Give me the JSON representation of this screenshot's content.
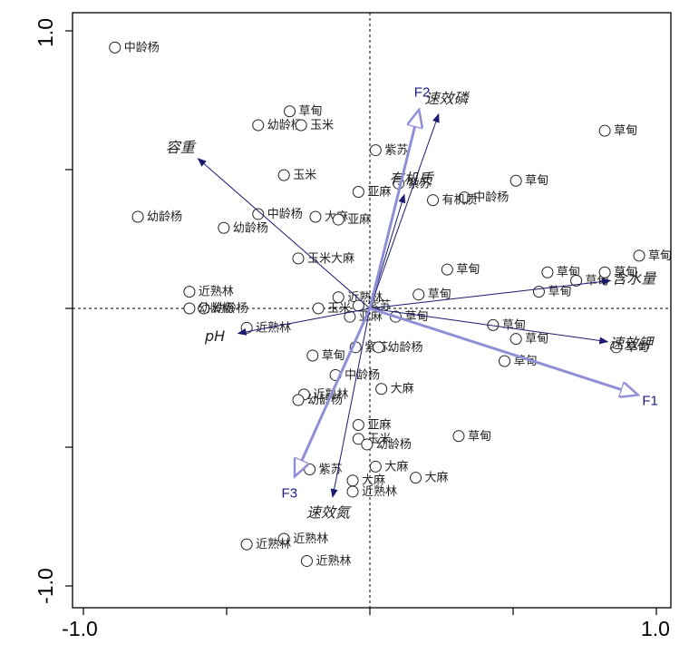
{
  "chart_data": {
    "type": "scatter",
    "title": "",
    "xlabel": "",
    "ylabel": "",
    "xlim": [
      -1.0,
      1.0
    ],
    "ylim": [
      -1.0,
      1.0
    ],
    "tick_labels": {
      "x_left": "-1.0",
      "x_right": "1.0",
      "y_top": "1.0",
      "y_bottom": "-1.0"
    },
    "colors": {
      "env_arrow": "#1a1a6e",
      "factor_arrow": "#8f8fd8",
      "factor_text": "#1a1a8a",
      "points": "#222222"
    },
    "env_vectors": [
      {
        "name": "速效磷",
        "x": 0.24,
        "y": 0.7
      },
      {
        "name": "容重",
        "x": -0.6,
        "y": 0.54
      },
      {
        "name": "有机质",
        "x": 0.12,
        "y": 0.41
      },
      {
        "name": "含水量",
        "x": 0.84,
        "y": 0.1
      },
      {
        "name": "pH",
        "x": -0.46,
        "y": -0.09
      },
      {
        "name": "速效钾",
        "x": 0.83,
        "y": -0.12
      },
      {
        "name": "速效氮",
        "x": -0.13,
        "y": -0.68
      }
    ],
    "factor_vectors": [
      {
        "name": "F1",
        "x": 0.93,
        "y": -0.31
      },
      {
        "name": "F2",
        "x": 0.17,
        "y": 0.71
      },
      {
        "name": "F3",
        "x": -0.26,
        "y": -0.6
      }
    ],
    "points": [
      {
        "label": "中龄杨",
        "x": -0.89,
        "y": 0.94
      },
      {
        "label": "草甸",
        "x": -0.28,
        "y": 0.71
      },
      {
        "label": "幼龄杨",
        "x": -0.39,
        "y": 0.66
      },
      {
        "label": "玉米",
        "x": -0.24,
        "y": 0.66
      },
      {
        "label": "草甸",
        "x": 0.82,
        "y": 0.64
      },
      {
        "label": "紫苏",
        "x": 0.02,
        "y": 0.57
      },
      {
        "label": "玉米",
        "x": -0.3,
        "y": 0.48
      },
      {
        "label": "紫苏",
        "x": 0.1,
        "y": 0.45
      },
      {
        "label": "中龄杨",
        "x": 0.33,
        "y": 0.4
      },
      {
        "label": "亚麻",
        "x": -0.04,
        "y": 0.42
      },
      {
        "label": "草甸",
        "x": 0.51,
        "y": 0.46
      },
      {
        "label": "中龄杨",
        "x": -0.39,
        "y": 0.34
      },
      {
        "label": "大麻",
        "x": -0.19,
        "y": 0.33
      },
      {
        "label": "幼龄杨",
        "x": -0.81,
        "y": 0.33
      },
      {
        "label": "幼龄杨",
        "x": -0.51,
        "y": 0.29
      },
      {
        "label": "有机质",
        "x": 0.22,
        "y": 0.39
      },
      {
        "label": "亚麻",
        "x": -0.11,
        "y": 0.32
      },
      {
        "label": "草甸",
        "x": 0.27,
        "y": 0.14
      },
      {
        "label": "玉米大麻",
        "x": -0.25,
        "y": 0.18
      },
      {
        "label": "草甸",
        "x": 0.17,
        "y": 0.05
      },
      {
        "label": "草甸",
        "x": 0.59,
        "y": 0.06
      },
      {
        "label": "草甸",
        "x": 0.62,
        "y": 0.13
      },
      {
        "label": "草甸",
        "x": 0.72,
        "y": 0.1
      },
      {
        "label": "草甸",
        "x": 0.82,
        "y": 0.13
      },
      {
        "label": "草甸",
        "x": 0.94,
        "y": 0.19
      },
      {
        "label": "近熟林",
        "x": -0.63,
        "y": 0.06
      },
      {
        "label": "幼龄杨",
        "x": -0.58,
        "y": 0.0
      },
      {
        "label": "近熟林",
        "x": -0.11,
        "y": 0.04
      },
      {
        "label": "紫苏",
        "x": -0.04,
        "y": 0.01
      },
      {
        "label": "玉米",
        "x": -0.18,
        "y": 0.0
      },
      {
        "label": "幼龄杨",
        "x": -0.63,
        "y": 0.0
      },
      {
        "label": "近熟林",
        "x": -0.43,
        "y": -0.07
      },
      {
        "label": "亚麻",
        "x": -0.07,
        "y": -0.03
      },
      {
        "label": "草甸",
        "x": 0.09,
        "y": -0.03
      },
      {
        "label": "草甸",
        "x": 0.43,
        "y": -0.06
      },
      {
        "label": "草甸",
        "x": 0.51,
        "y": -0.11
      },
      {
        "label": "草甸",
        "x": 0.86,
        "y": -0.14
      },
      {
        "label": "草甸",
        "x": -0.2,
        "y": -0.17
      },
      {
        "label": "紫苏",
        "x": -0.05,
        "y": -0.14
      },
      {
        "label": "幼龄杨",
        "x": 0.03,
        "y": -0.14
      },
      {
        "label": "中龄杨",
        "x": -0.12,
        "y": -0.24
      },
      {
        "label": "草甸",
        "x": 0.47,
        "y": -0.19
      },
      {
        "label": "大麻",
        "x": 0.04,
        "y": -0.29
      },
      {
        "label": "近熟林",
        "x": -0.23,
        "y": -0.31
      },
      {
        "label": "幼龄杨",
        "x": -0.25,
        "y": -0.33
      },
      {
        "label": "亚麻",
        "x": -0.04,
        "y": -0.42
      },
      {
        "label": "玉米",
        "x": -0.04,
        "y": -0.47
      },
      {
        "label": "草甸",
        "x": 0.31,
        "y": -0.46
      },
      {
        "label": "幼龄杨",
        "x": -0.01,
        "y": -0.49
      },
      {
        "label": "紫苏",
        "x": -0.21,
        "y": -0.58
      },
      {
        "label": "大麻",
        "x": 0.02,
        "y": -0.57
      },
      {
        "label": "大麻",
        "x": 0.16,
        "y": -0.61
      },
      {
        "label": "大麻",
        "x": -0.06,
        "y": -0.62
      },
      {
        "label": "近熟林",
        "x": -0.06,
        "y": -0.66
      },
      {
        "label": "近熟林",
        "x": -0.3,
        "y": -0.83
      },
      {
        "label": "近熟林",
        "x": -0.43,
        "y": -0.85
      },
      {
        "label": "近熟林",
        "x": -0.22,
        "y": -0.91
      }
    ]
  }
}
